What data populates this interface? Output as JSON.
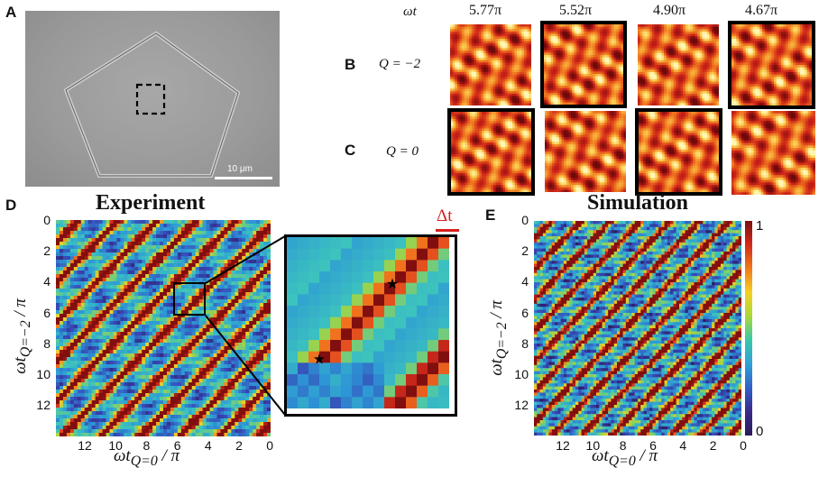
{
  "panels": {
    "a": {
      "letter": "A",
      "scale_bar": "10 μm"
    },
    "b": {
      "letter": "B",
      "q_label": "Q = −2",
      "highlighted": [
        false,
        true,
        false,
        true
      ]
    },
    "c": {
      "letter": "C",
      "q_label": "Q = 0",
      "highlighted": [
        true,
        false,
        true,
        false
      ]
    },
    "bc_header": {
      "omega_t": "ωt",
      "times": [
        "5.77π",
        "5.52π",
        "4.90π",
        "4.67π"
      ]
    },
    "d": {
      "letter": "D",
      "title": "Experiment",
      "ylabel": "ωt_{Q=−2} / π",
      "xlabel": "ωt_{Q=0} / π",
      "yticks": [
        "0",
        "2",
        "4",
        "6",
        "8",
        "10",
        "12"
      ],
      "xticks": [
        "12",
        "10",
        "8",
        "6",
        "4",
        "2",
        "0"
      ],
      "inset_label": "Δt",
      "inset_label_color": "#d42020"
    },
    "e": {
      "letter": "E",
      "title": "Simulation",
      "ylabel": "ωt_{Q=−2} / π",
      "xlabel": "ωt_{Q=0} / π",
      "yticks": [
        "0",
        "2",
        "4",
        "6",
        "8",
        "10",
        "12"
      ],
      "xticks": [
        "12",
        "10",
        "8",
        "6",
        "4",
        "2",
        "0"
      ],
      "colorbar_max": "1",
      "colorbar_min": "0"
    }
  }
}
